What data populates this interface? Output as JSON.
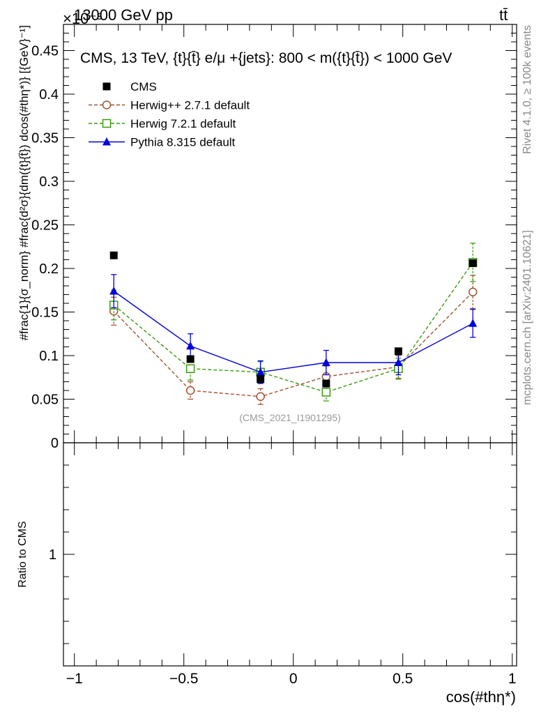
{
  "header": {
    "beam": "13000 GeV pp",
    "process": "tt̄",
    "exponent": "×10⁻³"
  },
  "side_labels": {
    "rivet": "Rivet 4.1.0, ≥ 100k events",
    "source": "mcplots.cern.ch [arXiv:2401.10621]"
  },
  "colors": {
    "cms": "#000000",
    "herwigpp": "#a0522d",
    "herwig7": "#3a9a10",
    "pythia": "#0000dd"
  },
  "chart_data": [
    {
      "type": "scatter",
      "title": "CMS, 13 TeV, {t}{t̄} e/μ +{jets}: 800 < m({t}{t̄}) < 1000 GeV",
      "watermark": "(CMS_2021_I1901295)",
      "ylabel": "#frac{1}{σ_norm} #frac{d²σ}{dm({t}{t̄}) dcos(#thη*)} [{GeV}⁻¹]",
      "ylabel_parts": {
        "prefix": "#",
        "one": "1",
        "sigma": "σ",
        "norm": "norm",
        "hash": "#",
        "d2s": "d²σ",
        "dm": "dm({t",
        "trail": "{t}) dcos(#thη*)} [{GeV}⁻¹]"
      },
      "xlim": [
        -1.05,
        1.02
      ],
      "ylim": [
        0,
        0.48
      ],
      "yticks": [
        0,
        0.05,
        0.1,
        0.15,
        0.2,
        0.25,
        0.3,
        0.35,
        0.4,
        0.45
      ],
      "ytick_labels": [
        "0",
        "0.05",
        "0.1",
        "0.15",
        "0.2",
        "0.25",
        "0.3",
        "0.35",
        "0.4",
        "0.45"
      ],
      "legend": {
        "placement": "top-left",
        "entries": [
          "CMS",
          "Herwig++ 2.7.1 default",
          "Herwig 7.2.1 default",
          "Pythia 8.315 default"
        ]
      },
      "series": [
        {
          "name": "CMS",
          "key": "cms",
          "marker": "square-filled",
          "line": "none",
          "x": [
            -0.82,
            -0.47,
            -0.15,
            0.15,
            0.48,
            0.82
          ],
          "y": [
            0.215,
            0.096,
            0.073,
            0.068,
            0.105,
            0.206
          ],
          "err": [
            0,
            0,
            0,
            0,
            0,
            0
          ]
        },
        {
          "name": "Herwig++ 2.7.1 default",
          "key": "herwigpp",
          "marker": "circle-open",
          "line": "dashed",
          "x": [
            -0.82,
            -0.47,
            -0.15,
            0.15,
            0.48,
            0.82
          ],
          "y": [
            0.151,
            0.06,
            0.053,
            0.076,
            0.087,
            0.173
          ],
          "err": [
            0.016,
            0.01,
            0.009,
            0.012,
            0.013,
            0.019
          ]
        },
        {
          "name": "Herwig 7.2.1 default",
          "key": "herwig7",
          "marker": "square-open",
          "line": "dashed",
          "x": [
            -0.82,
            -0.47,
            -0.15,
            0.15,
            0.48,
            0.82
          ],
          "y": [
            0.158,
            0.085,
            0.081,
            0.058,
            0.085,
            0.207
          ],
          "err": [
            0.017,
            0.013,
            0.012,
            0.01,
            0.012,
            0.022
          ]
        },
        {
          "name": "Pythia 8.315 default",
          "key": "pythia",
          "marker": "triangle-filled",
          "line": "solid",
          "x": [
            -0.82,
            -0.47,
            -0.15,
            0.15,
            0.48,
            0.82
          ],
          "y": [
            0.174,
            0.111,
            0.081,
            0.092,
            0.092,
            0.137
          ],
          "err": [
            0.019,
            0.014,
            0.013,
            0.014,
            0.014,
            0.016
          ]
        }
      ]
    },
    {
      "type": "line",
      "ylabel": "Ratio to CMS",
      "xlabel": "cos(#thη*)",
      "xlim": [
        -1.05,
        1.02
      ],
      "xticks": [
        -1,
        -0.5,
        0,
        0.5,
        1
      ],
      "xtick_labels": [
        "−1",
        "−0.5",
        "0",
        "0.5",
        "1"
      ],
      "ylim": [
        0.5,
        1.5
      ],
      "yticks": [
        1
      ],
      "ytick_labels": [
        "1"
      ],
      "series": []
    }
  ]
}
